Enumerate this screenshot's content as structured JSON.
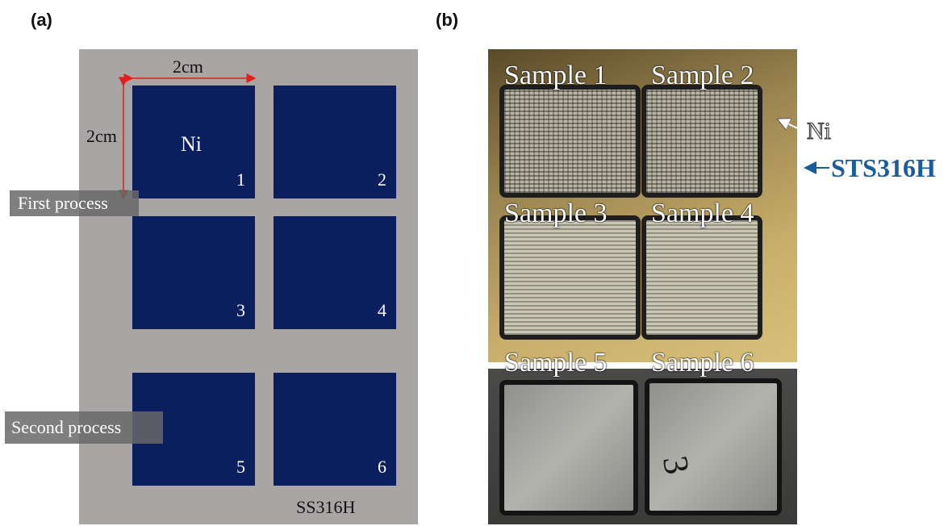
{
  "panels": {
    "a_label": "(a)",
    "b_label": "(b)"
  },
  "schematic": {
    "dim_horizontal": "2cm",
    "dim_vertical": "2cm",
    "ni_label": "Ni",
    "cells": [
      "1",
      "2",
      "3",
      "4",
      "5",
      "6"
    ],
    "first_process": "First process",
    "second_process": "Second process",
    "substrate_label": "SS316H",
    "colors": {
      "plate": "#aaa5a5",
      "ni_pad": "#0b1f5f",
      "dimension_arrow": "#e02020"
    }
  },
  "photo": {
    "samples": [
      "Sample 1",
      "Sample 2",
      "Sample 3",
      "Sample 4",
      "Sample 5",
      "Sample 6"
    ],
    "ni_annotation": "Ni",
    "substrate_annotation": "STS316H",
    "colors": {
      "ni_arrow": "#ffffff",
      "substrate_arrow": "#1a5c9c"
    }
  }
}
